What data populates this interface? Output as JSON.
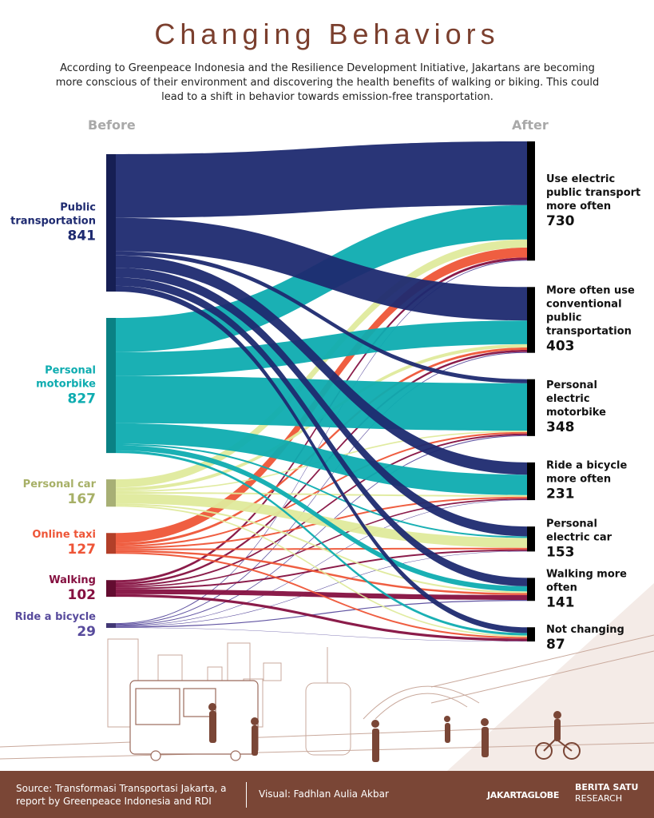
{
  "chart_data": {
    "type": "sankey",
    "title": "Changing Behaviors",
    "subtitle": "According to Greenpeace Indonesia and the Resilience Development Initiative, Jakartans  are becoming more conscious of their environment and discovering the health benefits of walking or biking. This could lead to a shift in behavior towards emission-free transportation.",
    "left_label": "Before",
    "right_label": "After",
    "sources": [
      {
        "name": "Public transportation",
        "value": 841,
        "color": "#1e2a70",
        "flows": [
          390,
          205,
          25,
          75,
          60,
          51,
          35
        ]
      },
      {
        "name": "Personal motorbike",
        "value": 827,
        "color": "#0eacb0",
        "flows": [
          210,
          145,
          290,
          125,
          10,
          32,
          15
        ]
      },
      {
        "name": "Personal car",
        "value": 167,
        "color": "#dfea9c",
        "flows": [
          50,
          20,
          8,
          10,
          60,
          10,
          9
        ]
      },
      {
        "name": "Online taxi",
        "value": 127,
        "color": "#ee5537",
        "flows": [
          60,
          15,
          10,
          10,
          10,
          12,
          10
        ]
      },
      {
        "name": "Walking",
        "value": 102,
        "color": "#851040",
        "flows": [
          15,
          13,
          10,
          8,
          10,
          30,
          16
        ]
      },
      {
        "name": "Ride a bicycle",
        "value": 29,
        "color": "#574a9c",
        "flows": [
          5,
          5,
          5,
          3,
          3,
          6,
          2
        ]
      }
    ],
    "targets": [
      {
        "name": "Use electric public transport more often",
        "value": 730,
        "color": "#000000"
      },
      {
        "name": "More often use conventional public transportation",
        "value": 403,
        "color": "#000000"
      },
      {
        "name": "Personal electric motorbike",
        "value": 348,
        "color": "#000000"
      },
      {
        "name": "Ride a bicycle more often",
        "value": 231,
        "color": "#000000"
      },
      {
        "name": "Personal electric car",
        "value": 153,
        "color": "#000000"
      },
      {
        "name": "Walking more often",
        "value": 141,
        "color": "#000000"
      },
      {
        "name": "Not changing",
        "value": 87,
        "color": "#000000"
      }
    ]
  },
  "footer": {
    "source": "Source: Transformasi Transportasi Jakarta, a report by Greenpeace Indonesia and RDI",
    "credit": "Visual: Fadhlan Aulia Akbar",
    "logo_left": "JAKARTAGLOBE",
    "logo_right_top": "BERITA SATU",
    "logo_right_bottom": "RESEARCH"
  }
}
